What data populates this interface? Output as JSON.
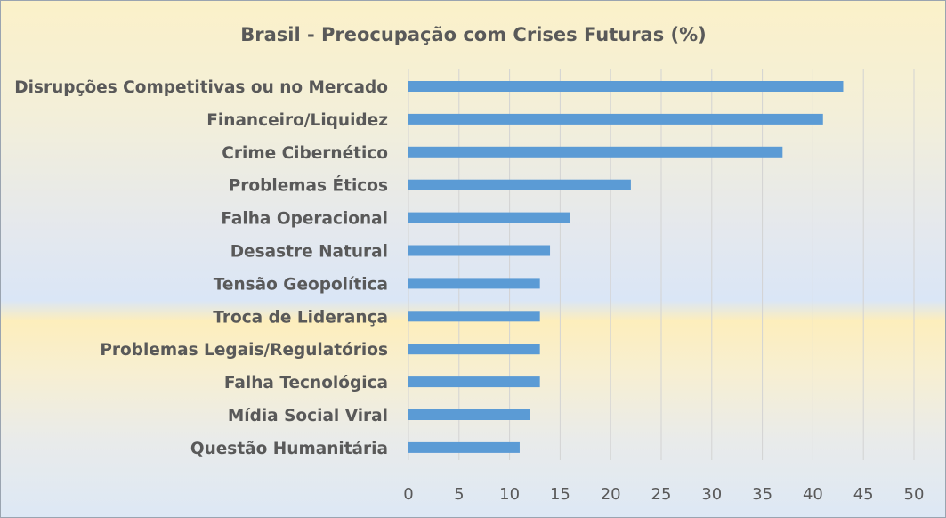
{
  "chart_data": {
    "type": "bar",
    "orientation": "horizontal",
    "title": "Brasil - Preocupação com Crises Futuras (%)",
    "categories": [
      "Disrupções Competitivas ou no Mercado",
      "Financeiro/Liquidez",
      "Crime Cibernético",
      "Problemas Éticos",
      "Falha Operacional",
      "Desastre Natural",
      "Tensão Geopolítica",
      "Troca de Liderança",
      "Problemas Legais/Regulatórios",
      "Falha Tecnológica",
      "Mídia Social Viral",
      "Questão Humanitária"
    ],
    "values": [
      43,
      41,
      37,
      22,
      16,
      14,
      13,
      13,
      13,
      13,
      12,
      11
    ],
    "xlim": [
      0,
      50
    ],
    "xticks": [
      0,
      5,
      10,
      15,
      20,
      25,
      30,
      35,
      40,
      45,
      50
    ],
    "grid": "vertical",
    "legend": "none",
    "bar_color": "#5b9bd5"
  }
}
